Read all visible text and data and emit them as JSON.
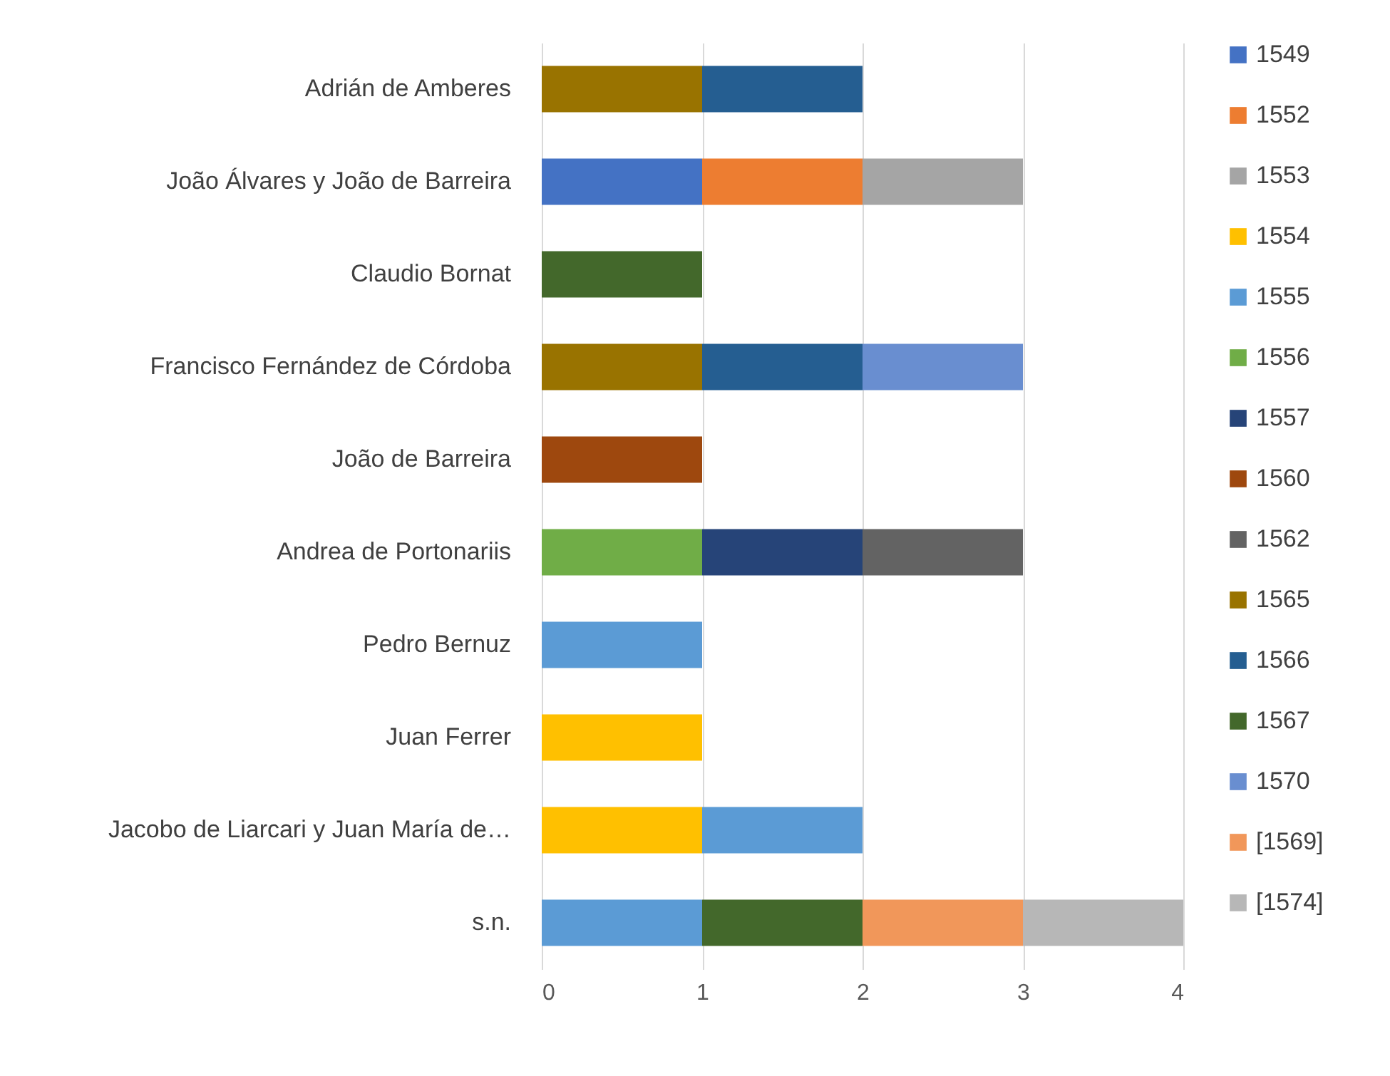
{
  "chart_data": {
    "type": "bar",
    "orientation": "horizontal",
    "stacked": true,
    "grid": "x",
    "legend": "right",
    "xlim": [
      0,
      4
    ],
    "xticks": [
      0,
      1,
      2,
      3,
      4
    ],
    "categories": [
      "Adrián de Amberes",
      "João Álvares y João de Barreira",
      "Claudio Bornat",
      "Francisco Fernández de Córdoba",
      "João de Barreira",
      "Andrea de Portonariis",
      "Pedro Bernuz",
      "Juan Ferrer",
      "Jacobo de Liarcari y Juan María de…",
      "s.n."
    ],
    "series": [
      {
        "name": "1549",
        "color": "#4472c4",
        "values": [
          null,
          1,
          null,
          null,
          null,
          null,
          null,
          null,
          null,
          null
        ]
      },
      {
        "name": "1552",
        "color": "#ed7d31",
        "values": [
          null,
          1,
          null,
          null,
          null,
          null,
          null,
          null,
          null,
          null
        ]
      },
      {
        "name": "1553",
        "color": "#a5a5a5",
        "values": [
          null,
          1,
          null,
          null,
          null,
          null,
          null,
          null,
          null,
          null
        ]
      },
      {
        "name": "1554",
        "color": "#ffc000",
        "values": [
          null,
          null,
          null,
          null,
          null,
          null,
          null,
          1,
          1,
          null
        ]
      },
      {
        "name": "1555",
        "color": "#5b9bd5",
        "values": [
          null,
          null,
          null,
          null,
          null,
          null,
          1,
          null,
          1,
          1
        ]
      },
      {
        "name": "1556",
        "color": "#70ad47",
        "values": [
          null,
          null,
          null,
          null,
          null,
          1,
          null,
          null,
          null,
          null
        ]
      },
      {
        "name": "1557",
        "color": "#264478",
        "values": [
          null,
          null,
          null,
          null,
          null,
          1,
          null,
          null,
          null,
          null
        ]
      },
      {
        "name": "1560",
        "color": "#9e480e",
        "values": [
          null,
          null,
          null,
          null,
          1,
          null,
          null,
          null,
          null,
          null
        ]
      },
      {
        "name": "1562",
        "color": "#636363",
        "values": [
          null,
          null,
          null,
          null,
          null,
          1,
          null,
          null,
          null,
          null
        ]
      },
      {
        "name": "1565",
        "color": "#997300",
        "values": [
          1,
          null,
          null,
          1,
          null,
          null,
          null,
          null,
          null,
          null
        ]
      },
      {
        "name": "1566",
        "color": "#255e91",
        "values": [
          1,
          null,
          null,
          1,
          null,
          null,
          null,
          null,
          null,
          null
        ]
      },
      {
        "name": "1567",
        "color": "#43682b",
        "values": [
          null,
          null,
          1,
          null,
          null,
          null,
          null,
          null,
          null,
          1
        ]
      },
      {
        "name": "1570",
        "color": "#698ed0",
        "values": [
          null,
          null,
          null,
          1,
          null,
          null,
          null,
          null,
          null,
          null
        ]
      },
      {
        "name": "[1569]",
        "color": "#f1975a",
        "values": [
          null,
          null,
          null,
          null,
          null,
          null,
          null,
          null,
          null,
          1
        ]
      },
      {
        "name": "[1574]",
        "color": "#b7b7b7",
        "values": [
          null,
          null,
          null,
          null,
          null,
          null,
          null,
          null,
          null,
          1
        ]
      }
    ]
  }
}
